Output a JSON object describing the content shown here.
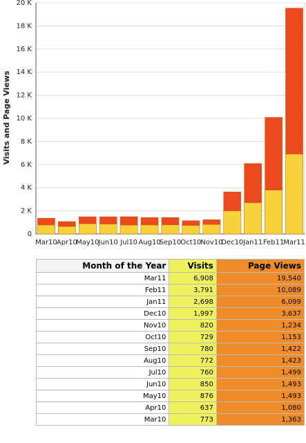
{
  "chart_data": {
    "type": "bar",
    "y_label": "Visits and Page Views",
    "categories": [
      "Mar10",
      "Apr10",
      "May10",
      "Jun10",
      "Jul10",
      "Aug10",
      "Sep10",
      "Oct10",
      "Nov10",
      "Dec10",
      "Jan11",
      "Feb11",
      "Mar11"
    ],
    "series": [
      {
        "name": "Page Views",
        "color": "#ec4a1e",
        "values": [
          1363,
          1080,
          1493,
          1493,
          1499,
          1423,
          1422,
          1153,
          1234,
          3637,
          6099,
          10089,
          19540
        ]
      },
      {
        "name": "Visits",
        "color": "#f8d23a",
        "values": [
          773,
          637,
          876,
          850,
          760,
          772,
          780,
          729,
          820,
          1997,
          2698,
          3791,
          6908
        ]
      }
    ],
    "ylim": [
      0,
      20000
    ],
    "yticks": [
      0,
      {
        "value": 2000,
        "label": "2 K"
      },
      {
        "value": 4000,
        "label": "4 K"
      },
      {
        "value": 6000,
        "label": "6 K"
      },
      {
        "value": 8000,
        "label": "8 K"
      },
      {
        "value": 10000,
        "label": "10 K"
      },
      {
        "value": 12000,
        "label": "12 K"
      },
      {
        "value": 14000,
        "label": "14 K"
      },
      {
        "value": 16000,
        "label": "16 K"
      },
      {
        "value": 18000,
        "label": "18 K"
      },
      {
        "value": 20000,
        "label": "20 K"
      }
    ],
    "grid": true
  },
  "table": {
    "header": [
      "Month of the Year",
      "Visits",
      "Page Views"
    ],
    "rows": [
      [
        "Mar11",
        "6,908",
        "19,540"
      ],
      [
        "Feb11",
        "3,791",
        "10,089"
      ],
      [
        "Jan11",
        "2,698",
        "6,099"
      ],
      [
        "Dec10",
        "1,997",
        "3,637"
      ],
      [
        "Nov10",
        "820",
        "1,234"
      ],
      [
        "Oct10",
        "729",
        "1,153"
      ],
      [
        "Sep10",
        "780",
        "1,422"
      ],
      [
        "Aug10",
        "772",
        "1,423"
      ],
      [
        "Jul10",
        "760",
        "1,499"
      ],
      [
        "Jun10",
        "850",
        "1,493"
      ],
      [
        "May10",
        "876",
        "1,493"
      ],
      [
        "Apr10",
        "637",
        "1,080"
      ],
      [
        "Mar10",
        "773",
        "1,363"
      ]
    ]
  }
}
